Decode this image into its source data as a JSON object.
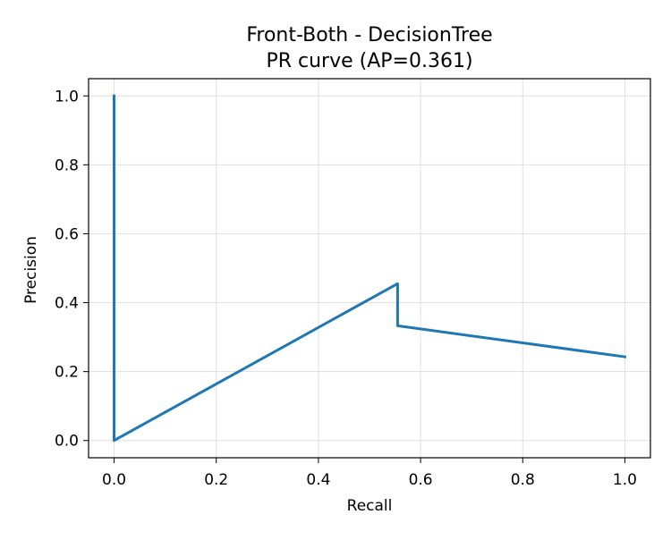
{
  "chart_data": {
    "type": "line",
    "title_line1": "Front-Both - DecisionTree",
    "title_line2": "PR curve (AP=0.361)",
    "xlabel": "Recall",
    "ylabel": "Precision",
    "xlim": [
      -0.05,
      1.05
    ],
    "ylim": [
      -0.05,
      1.05
    ],
    "grid": true,
    "x_ticks": [
      "0.0",
      "0.2",
      "0.4",
      "0.6",
      "0.8",
      "1.0"
    ],
    "y_ticks": [
      "0.0",
      "0.2",
      "0.4",
      "0.6",
      "0.8",
      "1.0"
    ],
    "series": [
      {
        "color": "#1f77b4",
        "x": [
          0.0,
          0.0,
          0.555,
          0.555,
          1.0
        ],
        "y": [
          1.0,
          0.0,
          0.455,
          0.333,
          0.243
        ]
      }
    ]
  }
}
